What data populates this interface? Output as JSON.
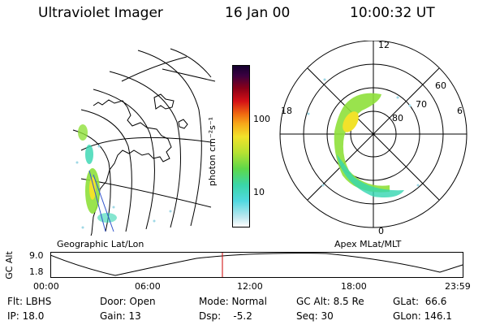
{
  "header": {
    "title": "Ultraviolet Imager",
    "date": "16 Jan 00",
    "time": "10:00:32 UT"
  },
  "colorbar": {
    "unit_label": "photon cm⁻²s⁻¹",
    "tick_100": "100",
    "tick_10": "10"
  },
  "polar_plot": {
    "mlt_12": "12",
    "mlt_18": "18",
    "mlt_6": "6",
    "mlt_0": "0",
    "lat_60": "60",
    "lat_70": "70",
    "lat_80": "80"
  },
  "labels": {
    "geo": "Geographic Lat/Lon",
    "apex": "Apex MLat/MLT"
  },
  "altitude_strip": {
    "axis_label": "GC Alt",
    "tick_9": "9.0",
    "tick_1": "1.8",
    "time_ticks": [
      "00:00",
      "06:00",
      "12:00",
      "18:00",
      "23:59"
    ]
  },
  "info": {
    "flt": "Flt: LBHS",
    "door": "Door: Open",
    "mode": "Mode: Normal",
    "gc_alt": "GC Alt: 8.5 Re",
    "glat": "GLat:  66.6",
    "ip": "IP: 18.0",
    "gain": "Gain: 13",
    "dsp": "Dsp:    -5.2",
    "seq": "Seq: 30",
    "glon": "GLon: 146.1"
  },
  "colors": {
    "accent_marker": "#cc0000",
    "aurora_low": "#33d6b0",
    "aurora_mid": "#8ee03a",
    "aurora_high": "#f2e22a"
  }
}
